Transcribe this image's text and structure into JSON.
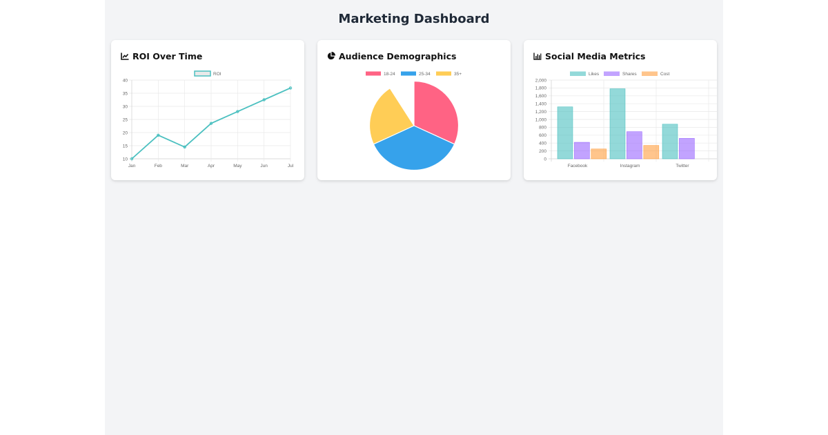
{
  "page": {
    "title": "Marketing Dashboard"
  },
  "cards": [
    {
      "title": "ROI Over Time",
      "icon": "chart-line-icon"
    },
    {
      "title": "Audience Demographics",
      "icon": "chart-pie-icon"
    },
    {
      "title": "Social Media Metrics",
      "icon": "chart-bar-icon"
    }
  ],
  "colors": {
    "page_bg": "#f3f4f6",
    "title": "#1f2937",
    "roi_line": "#4bc0c0",
    "pink": "#ff6384",
    "blue": "#36a2eb",
    "yellow": "#ffcd56",
    "likes": "#4bc0c0",
    "shares": "#9966ff",
    "cost": "#ff9f40"
  },
  "chart_data": [
    {
      "type": "line",
      "title": "ROI Over Time",
      "categories": [
        "Jan",
        "Feb",
        "Mar",
        "Apr",
        "May",
        "Jun",
        "Jul"
      ],
      "series": [
        {
          "name": "ROI",
          "values": [
            10,
            19,
            14.5,
            23.5,
            28,
            32.5,
            37
          ]
        }
      ],
      "yticks": [
        10,
        15,
        20,
        25,
        30,
        35,
        40
      ],
      "ylim": [
        10,
        40
      ],
      "xlabel": "",
      "ylabel": "",
      "legend": [
        "ROI"
      ],
      "legend_position": "top",
      "grid": true
    },
    {
      "type": "pie",
      "title": "Audience Demographics",
      "categories": [
        "18-24",
        "25-34",
        "35+",
        ""
      ],
      "values": [
        35,
        40,
        25,
        10
      ],
      "legend": [
        "18-24",
        "25-34",
        "35+"
      ],
      "legend_position": "top",
      "note": "fourth slice has no color/label and renders as a gap"
    },
    {
      "type": "bar",
      "title": "Social Media Metrics",
      "categories": [
        "Facebook",
        "Instagram",
        "Twitter"
      ],
      "series": [
        {
          "name": "Likes",
          "values": [
            1320,
            1780,
            880
          ]
        },
        {
          "name": "Shares",
          "values": [
            420,
            690,
            520
          ]
        },
        {
          "name": "Cost",
          "values": [
            250,
            340,
            null
          ]
        }
      ],
      "yticks": [
        "0",
        "200",
        "400",
        "600",
        "800",
        "1,000",
        "1,200",
        "1,400",
        "1,600",
        "1,800",
        "2,000"
      ],
      "ylim": [
        0,
        2000
      ],
      "xlabel": "",
      "ylabel": "",
      "legend": [
        "Likes",
        "Shares",
        "Cost"
      ],
      "legend_position": "top",
      "grid": true,
      "note": "chart is clipped on the right; Twitter Cost bar not visible"
    }
  ]
}
